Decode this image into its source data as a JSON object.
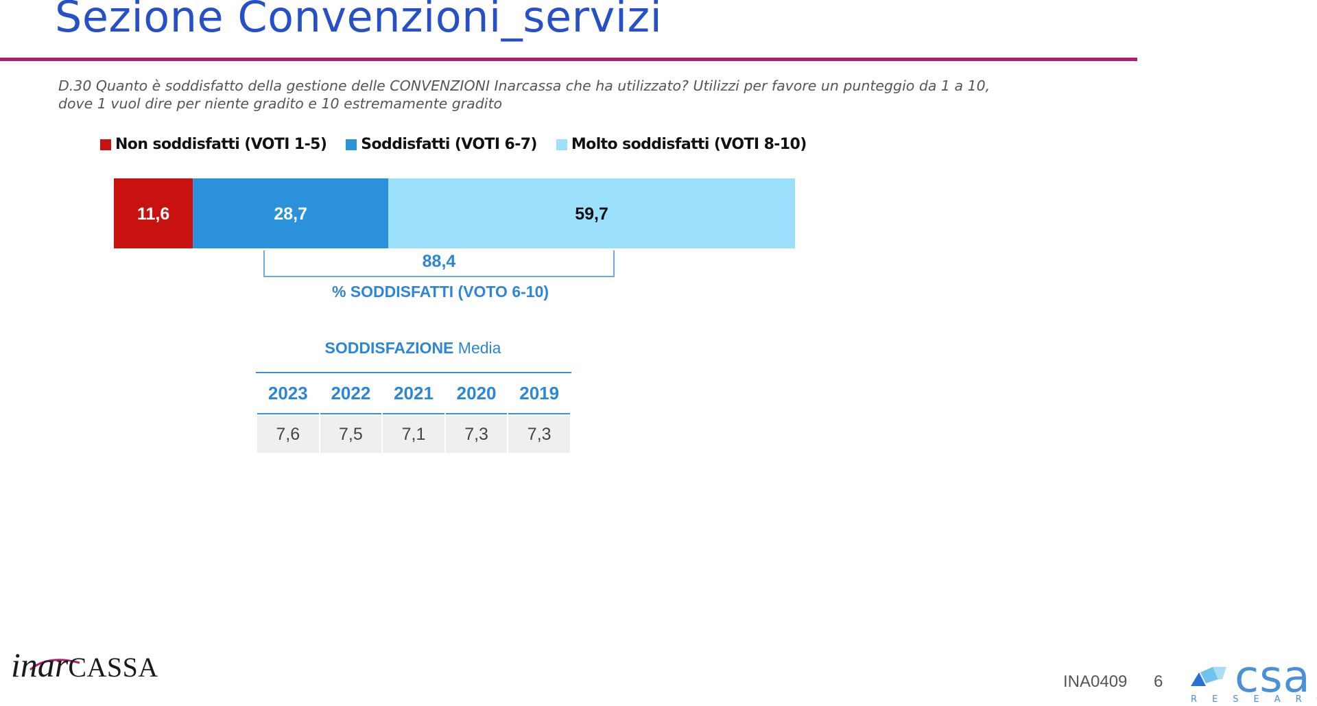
{
  "header": {
    "title": "Sezione Convenzioni_servizi",
    "question_line1": "D.30  Quanto è soddisfatto della gestione delle CONVENZIONI Inarcassa che ha utilizzato? Utilizzi per favore un punteggio da 1 a 10,",
    "question_line2": "dove 1 vuol dire per niente gradito e 10 estremamente gradito"
  },
  "chart_data": {
    "type": "bar",
    "orientation": "horizontal-stacked",
    "legend_position": "top",
    "xlim": [
      0,
      100
    ],
    "series": [
      {
        "name": "Non soddisfatti (VOTI 1-5)",
        "value": 11.6,
        "label": "11,6",
        "color": "#c8120f",
        "label_color": "#ffffff"
      },
      {
        "name": "Soddisfatti (VOTI 6-7)",
        "value": 28.7,
        "label": "28,7",
        "color": "#2b91da",
        "label_color": "#ffffff"
      },
      {
        "name": "Molto soddisfatti (VOTI 8-10)",
        "value": 59.7,
        "label": "59,7",
        "color": "#9be1fb",
        "label_color": "#111111"
      }
    ],
    "annotation": {
      "value": 88.4,
      "label": "88,4",
      "text": "% SODDISFATTI (VOTO 6-10)"
    }
  },
  "average": {
    "title_bold": "SODDISFAZIONE",
    "title_rest": " Media",
    "years": [
      "2023",
      "2022",
      "2021",
      "2020",
      "2019"
    ],
    "values": [
      "7,6",
      "7,5",
      "7,1",
      "7,3",
      "7,3"
    ]
  },
  "footer": {
    "logo_it": "inar",
    "logo_caps": "CASSA",
    "code": "INA0409",
    "page": "6",
    "brand": "csa",
    "brand_sub": "RESEARCH"
  },
  "colors": {
    "accent_blue": "#2650c8",
    "rule": "#b41a6e",
    "annotation_blue": "#2c86d8"
  }
}
